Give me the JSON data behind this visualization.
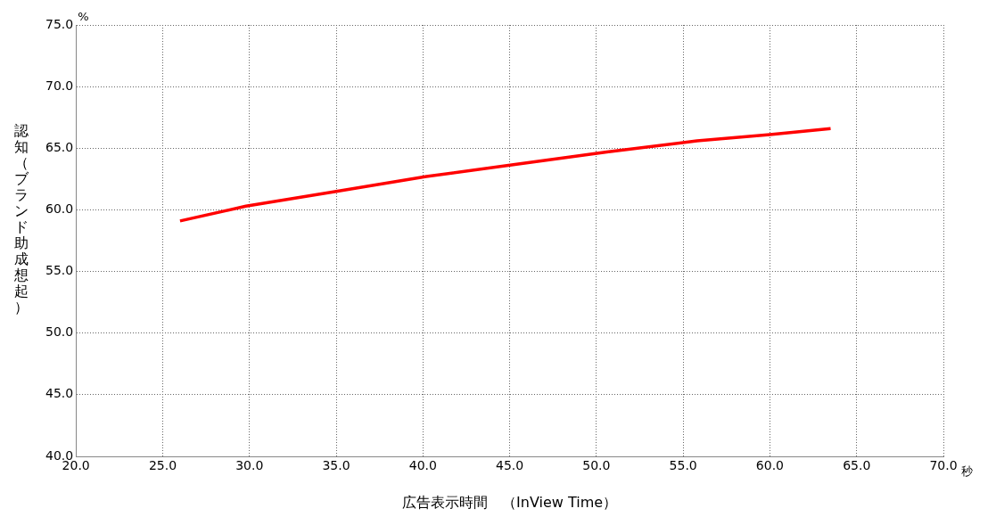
{
  "chart_data": {
    "type": "line",
    "xlabel": "広告表示時間　（InView Time）",
    "ylabel": "認知（ブランド助成想起）",
    "annotations": [
      "%",
      "秒"
    ],
    "xlim": [
      20,
      70
    ],
    "xticks": [
      {
        "value": 20,
        "label": "20.0"
      },
      {
        "value": 25,
        "label": "25.0"
      },
      {
        "value": 30,
        "label": "30.0"
      },
      {
        "value": 35,
        "label": "35.0"
      },
      {
        "value": 40,
        "label": "40.0"
      },
      {
        "value": 45,
        "label": "45.0"
      },
      {
        "value": 50,
        "label": "50.0"
      },
      {
        "value": 55,
        "label": "55.0"
      },
      {
        "value": 60,
        "label": "60.0"
      },
      {
        "value": 65,
        "label": "65.0"
      },
      {
        "value": 70,
        "label": "70.0"
      }
    ],
    "ylim": [
      40,
      75
    ],
    "yticks": [
      {
        "value": 40,
        "label": "40.0"
      },
      {
        "value": 45,
        "label": "45.0"
      },
      {
        "value": 50,
        "label": "50.0"
      },
      {
        "value": 55,
        "label": "55.0"
      },
      {
        "value": 60,
        "label": "60.0"
      },
      {
        "value": 65,
        "label": "65.0"
      },
      {
        "value": 70,
        "label": "70.0"
      },
      {
        "value": 75,
        "label": "75.0"
      }
    ],
    "grid": true,
    "legend": false,
    "marker": "none",
    "line_style": "solid",
    "series": [
      {
        "color": "#ff0000",
        "x": [
          26.0,
          29.8,
          35.0,
          40.2,
          45.4,
          50.6,
          55.8,
          60.0,
          63.5
        ],
        "values": [
          59.1,
          60.3,
          61.5,
          62.7,
          63.7,
          64.7,
          65.6,
          66.1,
          66.6
        ]
      }
    ]
  }
}
